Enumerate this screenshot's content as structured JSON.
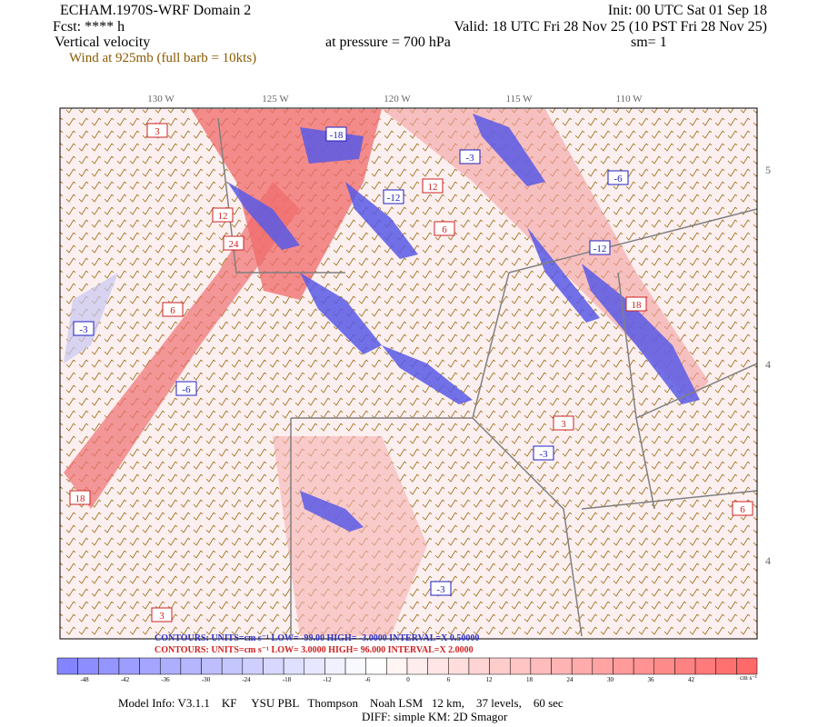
{
  "header": {
    "title": "ECHAM.1970S-WRF Domain 2",
    "init": "Init: 00 UTC Sat 01 Sep 18",
    "forecast": "Fcst: **** h",
    "valid": "Valid: 18 UTC Fri 28 Nov 25 (10 PST Fri 28 Nov 25)",
    "field": "Vertical velocity",
    "level": "at pressure =  700 hPa",
    "smoothing": "sm= 1",
    "wind": "Wind at 925mb (full barb = 10kts)"
  },
  "map": {
    "lon_labels": [
      "130 W",
      "125 W",
      "120 W",
      "115 W",
      "110 W"
    ],
    "lat_labels": [
      "5",
      "4",
      "4"
    ],
    "contour_labels": [
      "-3",
      "6",
      "12",
      "-12",
      "18",
      "-18",
      "24",
      "-6",
      "3",
      "-3",
      "6",
      "-3",
      "12",
      "-12",
      "3",
      "-6",
      "18",
      "3",
      "-3",
      "6"
    ]
  },
  "contours": {
    "negative": "CONTOURS:  UNITS=cm s⁻¹  LOW= -99.00   HIGH= -3.0000   INTERVAL=X  0.50000",
    "positive": "CONTOURS:  UNITS=cm s⁻¹  LOW=  3.0000      HIGH=  96.000      INTERVAL=X  2.0000"
  },
  "colorbar": {
    "ticks": [
      -48,
      -42,
      -36,
      -30,
      -24,
      -18,
      -12,
      -6,
      0,
      6,
      12,
      18,
      24,
      30,
      36,
      42
    ],
    "unit": "cm s⁻¹"
  },
  "footer": {
    "model_info": "Model Info: V3.1.1    KF     YSU PBL   Thompson    Noah LSM   12 km,    37 levels,    60 sec",
    "diff": "DIFF: simple KM: 2D Smagor"
  }
}
